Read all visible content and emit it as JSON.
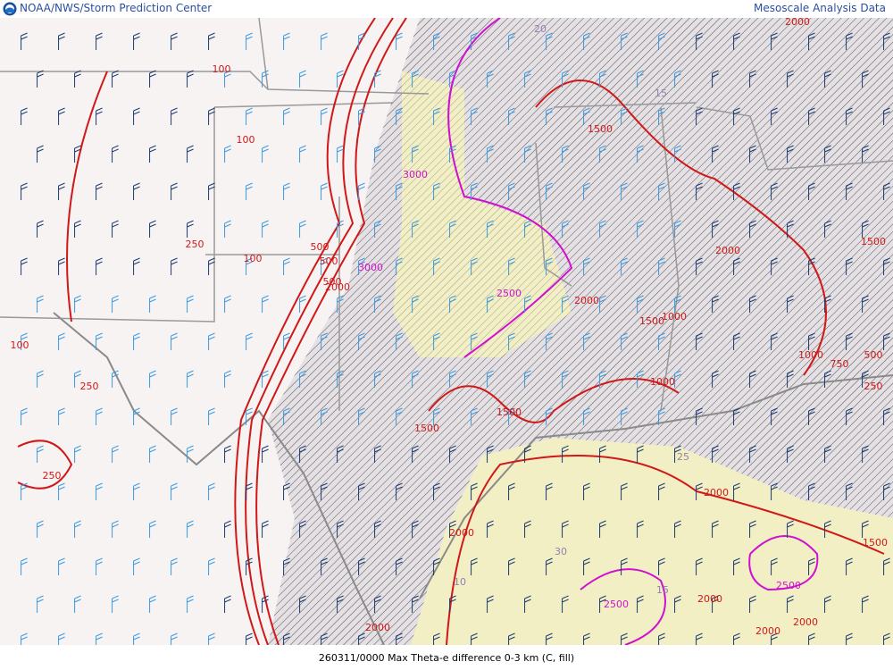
{
  "header": {
    "left": "NOAA/NWS/Storm Prediction Center",
    "right": "Mesoscale Analysis Data"
  },
  "caption": "260311/0000 Max Theta-e difference 0-3 km (C, fill)",
  "contours": [
    {
      "color": "#d01818",
      "labels": [
        100,
        100,
        250,
        100,
        100,
        250,
        250,
        500,
        500,
        500,
        2000,
        1500,
        2000,
        1500,
        1000,
        2000,
        1500,
        1000,
        1000,
        750,
        500,
        250,
        1500,
        1500,
        2000,
        2000,
        1500,
        2000,
        2000,
        2000,
        2000,
        2000
      ]
    },
    {
      "color": "#d010d0",
      "labels": [
        3000,
        3000,
        2500,
        2500,
        2500
      ]
    },
    {
      "color": "#9080b0",
      "labels": [
        20,
        15,
        25,
        30,
        10,
        15
      ]
    }
  ]
}
